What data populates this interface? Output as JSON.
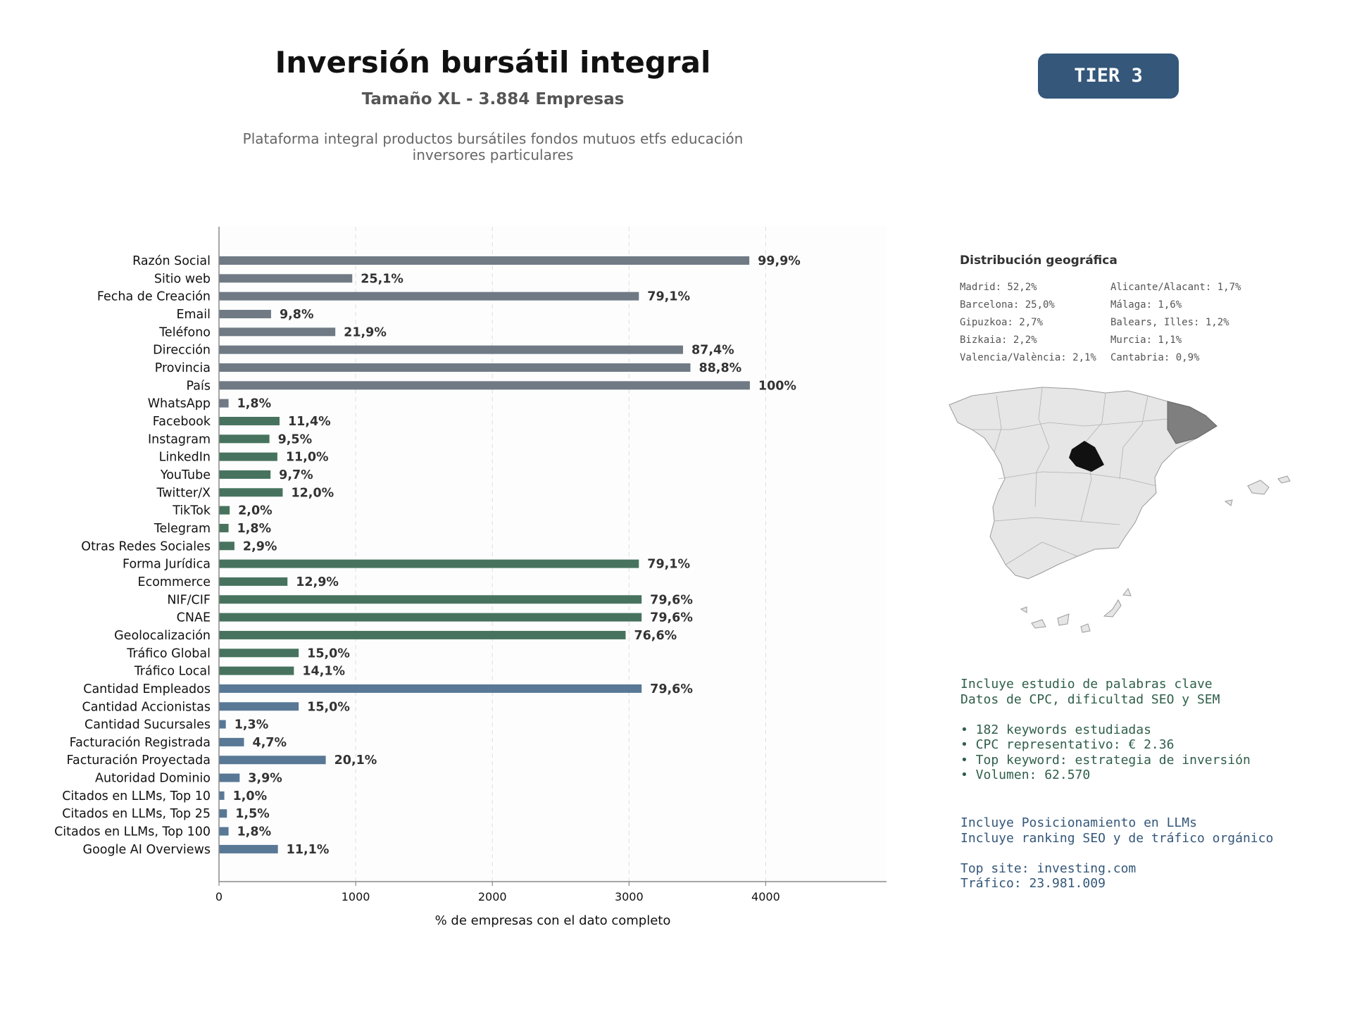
{
  "header": {
    "title": "Inversión bursátil integral",
    "subtitle": "Tamaño XL - 3.884 Empresas",
    "description": "Plataforma integral productos bursátiles fondos mutuos etfs educación inversores particulares",
    "tier_label": "TIER 3"
  },
  "colors": {
    "gray": "#6f7a84",
    "green": "#47735e",
    "blue": "#587896",
    "tier_bg": "#34577a"
  },
  "chart_data": {
    "type": "bar",
    "orientation": "horizontal",
    "xlabel": "% de empresas con el dato completo",
    "xlim": [
      0,
      4884
    ],
    "xticks": [
      0,
      1000,
      2000,
      3000,
      4000
    ],
    "grid": true,
    "categories": [
      "Razón Social",
      "Sitio web",
      "Fecha de Creación",
      "Email",
      "Teléfono",
      "Dirección",
      "Provincia",
      "País",
      "WhatsApp",
      "Facebook",
      "Instagram",
      "LinkedIn",
      "YouTube",
      "Twitter/X",
      "TikTok",
      "Telegram",
      "Otras Redes Sociales",
      "Forma Jurídica",
      "Ecommerce",
      "NIF/CIF",
      "CNAE",
      "Geolocalización",
      "Tráfico Global",
      "Tráfico Local",
      "Cantidad Empleados",
      "Cantidad Accionistas",
      "Cantidad Sucursales",
      "Facturación Registrada",
      "Facturación Proyectada",
      "Autoridad Dominio",
      "Citados en LLMs, Top 10",
      "Citados en LLMs, Top 25",
      "Citados en LLMs, Top 100",
      "Google AI Overviews"
    ],
    "values": [
      3880,
      975,
      3072,
      381,
      851,
      3395,
      3449,
      3884,
      70,
      443,
      369,
      427,
      377,
      466,
      78,
      70,
      113,
      3072,
      501,
      3092,
      3092,
      2975,
      583,
      548,
      3092,
      583,
      50,
      183,
      781,
      151,
      39,
      58,
      70,
      431
    ],
    "labels": [
      "99,9%",
      "25,1%",
      "79,1%",
      "9,8%",
      "21,9%",
      "87,4%",
      "88,8%",
      "100%",
      "1,8%",
      "11,4%",
      "9,5%",
      "11,0%",
      "9,7%",
      "12,0%",
      "2,0%",
      "1,8%",
      "2,9%",
      "79,1%",
      "12,9%",
      "79,6%",
      "79,6%",
      "76,6%",
      "15,0%",
      "14,1%",
      "79,6%",
      "15,0%",
      "1,3%",
      "4,7%",
      "20,1%",
      "3,9%",
      "1,0%",
      "1,5%",
      "1,8%",
      "11,1%"
    ],
    "groups": [
      "gray",
      "gray",
      "gray",
      "gray",
      "gray",
      "gray",
      "gray",
      "gray",
      "gray",
      "green",
      "green",
      "green",
      "green",
      "green",
      "green",
      "green",
      "green",
      "green",
      "green",
      "green",
      "green",
      "green",
      "green",
      "green",
      "blue",
      "blue",
      "blue",
      "blue",
      "blue",
      "blue",
      "blue",
      "blue",
      "blue",
      "blue"
    ]
  },
  "geo": {
    "title": "Distribución geográfica",
    "items": [
      "Madrid: 52,2%",
      "Alicante/Alacant: 1,7%",
      "Barcelona: 25,0%",
      "Málaga: 1,6%",
      "Gipuzkoa: 2,7%",
      "Balears, Illes: 1,2%",
      "Bizkaia: 2,2%",
      "Murcia: 1,1%",
      "Valencia/València: 2,1%",
      "Cantabria: 0,9%"
    ]
  },
  "keywords": {
    "text": "Incluye estudio de palabras clave\nDatos de CPC, dificultad SEO y SEM\n\n• 182 keywords estudiadas\n• CPC representativo: € 2.36\n• Top keyword: estrategia de inversión\n• Volumen: 62.570"
  },
  "llm": {
    "text": "Incluye Posicionamiento en LLMs\nIncluye ranking SEO y de tráfico orgánico\n\nTop site: investing.com\nTráfico: 23.981.009"
  }
}
